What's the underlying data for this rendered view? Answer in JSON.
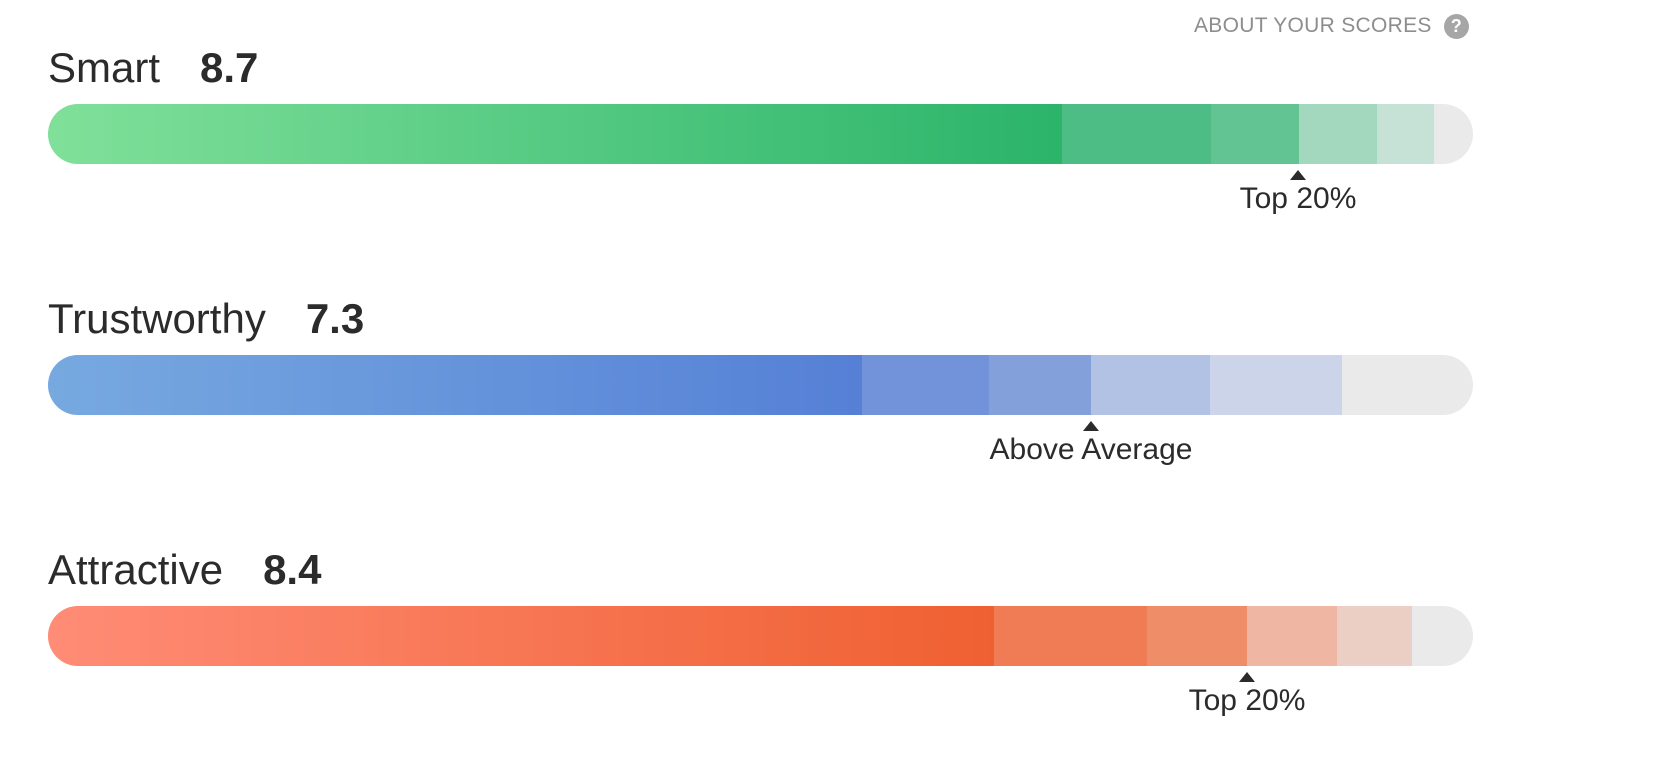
{
  "about": {
    "label": "ABOUT YOUR SCORES",
    "icon": "help-circle-icon"
  },
  "scores": [
    {
      "name": "Smart",
      "value": "8.7",
      "percentile_label": "Top 20%",
      "marker_position": 0.877,
      "colors": {
        "gradient_start": "#80e09a",
        "gradient_end": "#2bb46a",
        "bands": [
          "#4dbd85",
          "#62c393",
          "#a3d8bf",
          "#c6e2d6"
        ],
        "track": "#eaeaea"
      }
    },
    {
      "name": "Trustworthy",
      "value": "7.3",
      "percentile_label": "Above Average",
      "marker_position": 0.732,
      "colors": {
        "gradient_start": "#77a9e0",
        "gradient_end": "#5580d6",
        "bands": [
          "#7293da",
          "#83a0da",
          "#b2c2e4",
          "#cbd4e8"
        ],
        "track": "#eaeaea"
      }
    },
    {
      "name": "Attractive",
      "value": "8.4",
      "percentile_label": "Top 20%",
      "marker_position": 0.841,
      "colors": {
        "gradient_start": "#ff8c76",
        "gradient_end": "#ef6031",
        "bands": [
          "#ef7c54",
          "#ee8d67",
          "#eeb6a3",
          "#ebcec4"
        ],
        "track": "#eaeaea"
      }
    }
  ]
}
